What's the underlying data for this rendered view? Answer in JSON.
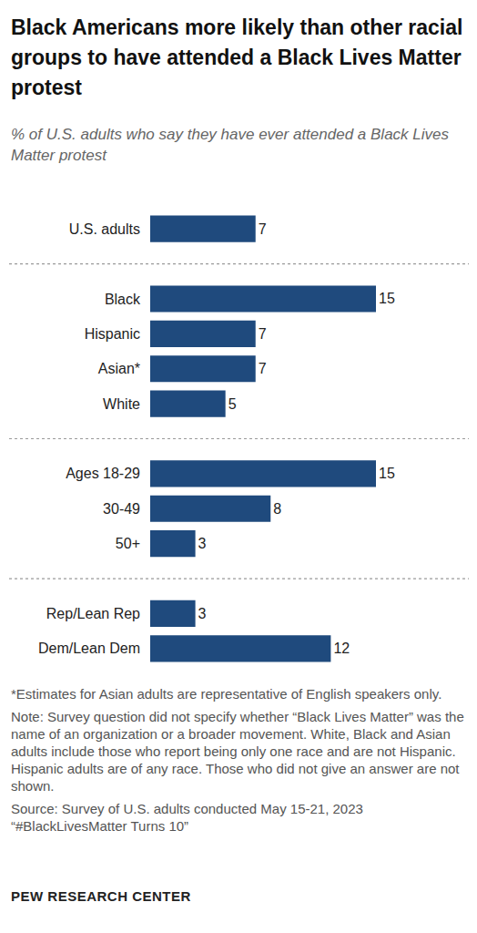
{
  "chart_data": {
    "type": "bar",
    "orientation": "horizontal",
    "title": "Black Americans more likely than other racial groups to have attended a Black Lives Matter protest",
    "subtitle": "% of U.S. adults who say they have ever attended a Black Lives Matter protest",
    "categories": [
      "U.S. adults",
      null,
      "Black",
      "Hispanic",
      "Asian*",
      "White",
      null,
      "Ages 18-29",
      "30-49",
      "50+",
      null,
      "Rep/Lean Rep",
      "Dem/Lean Dem"
    ],
    "values": [
      7,
      null,
      15,
      7,
      7,
      5,
      null,
      15,
      8,
      3,
      null,
      3,
      12
    ],
    "color": "#1f4a7d",
    "data_labels": true,
    "tick_labels": "y",
    "grid": false,
    "xlim": [
      0,
      15
    ],
    "xticks": [
      0,
      15
    ],
    "footnote": "*Estimates for Asian adults are representative of English speakers only.",
    "note": "Note: Survey question did not specify whether “Black Lives Matter” was the name of an organization or a broader movement. White, Black and Asian adults include those who report being only one race and are not Hispanic. Hispanic adults are of any race. Those who did not give an answer are not shown.",
    "source": [
      "Source: Survey of U.S. adults conducted May 15-21, 2023",
      "“#BlackLivesMatter Turns 10”"
    ],
    "credit": "PEW RESEARCH CENTER"
  }
}
